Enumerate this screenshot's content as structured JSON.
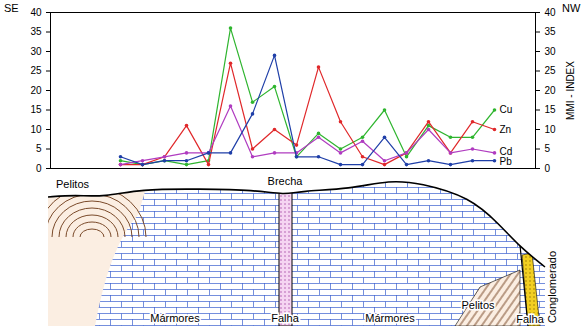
{
  "chart_data": {
    "type": "line",
    "annotations": [
      "SE",
      "NW"
    ],
    "y_label": "MMI - INDEX",
    "categories": [
      null,
      null,
      null,
      null,
      null,
      null,
      null,
      null,
      null,
      null,
      null,
      null,
      null,
      null,
      null,
      null,
      null,
      null
    ],
    "series": [
      {
        "name": "Cu",
        "color": "#2fb52f",
        "values": [
          2,
          1,
          2,
          1,
          2,
          36,
          17,
          21,
          3,
          9,
          5,
          8,
          15,
          3,
          11,
          8,
          8,
          15
        ]
      },
      {
        "name": "Zn",
        "color": "#e0282a",
        "values": [
          1,
          1,
          3,
          11,
          1,
          27,
          5,
          10,
          6,
          26,
          12,
          3,
          1,
          4,
          12,
          4,
          12,
          10
        ]
      },
      {
        "name": "Cd",
        "color": "#b03cc0",
        "values": [
          1,
          2,
          3,
          4,
          4,
          16,
          3,
          4,
          4,
          8,
          4,
          7,
          2,
          4,
          10,
          4,
          5,
          4
        ]
      },
      {
        "name": "Pb",
        "color": "#1f3fa8",
        "values": [
          3,
          1,
          2,
          2,
          4,
          4,
          14,
          29,
          3,
          3,
          1,
          1,
          8,
          1,
          2,
          1,
          2,
          2
        ]
      }
    ],
    "ylim": [
      0,
      40
    ],
    "yticks": [
      0,
      5,
      10,
      15,
      20,
      25,
      30,
      35,
      40
    ],
    "marker": "circle",
    "tick_labels": "y",
    "grid": false,
    "legend": "right"
  },
  "cross_section": {
    "labels": [
      "Pelitos",
      "Brecha",
      "Mármores",
      "Falha",
      "Mármores",
      "Pelitos",
      "Conglomerado",
      "Falha"
    ]
  }
}
